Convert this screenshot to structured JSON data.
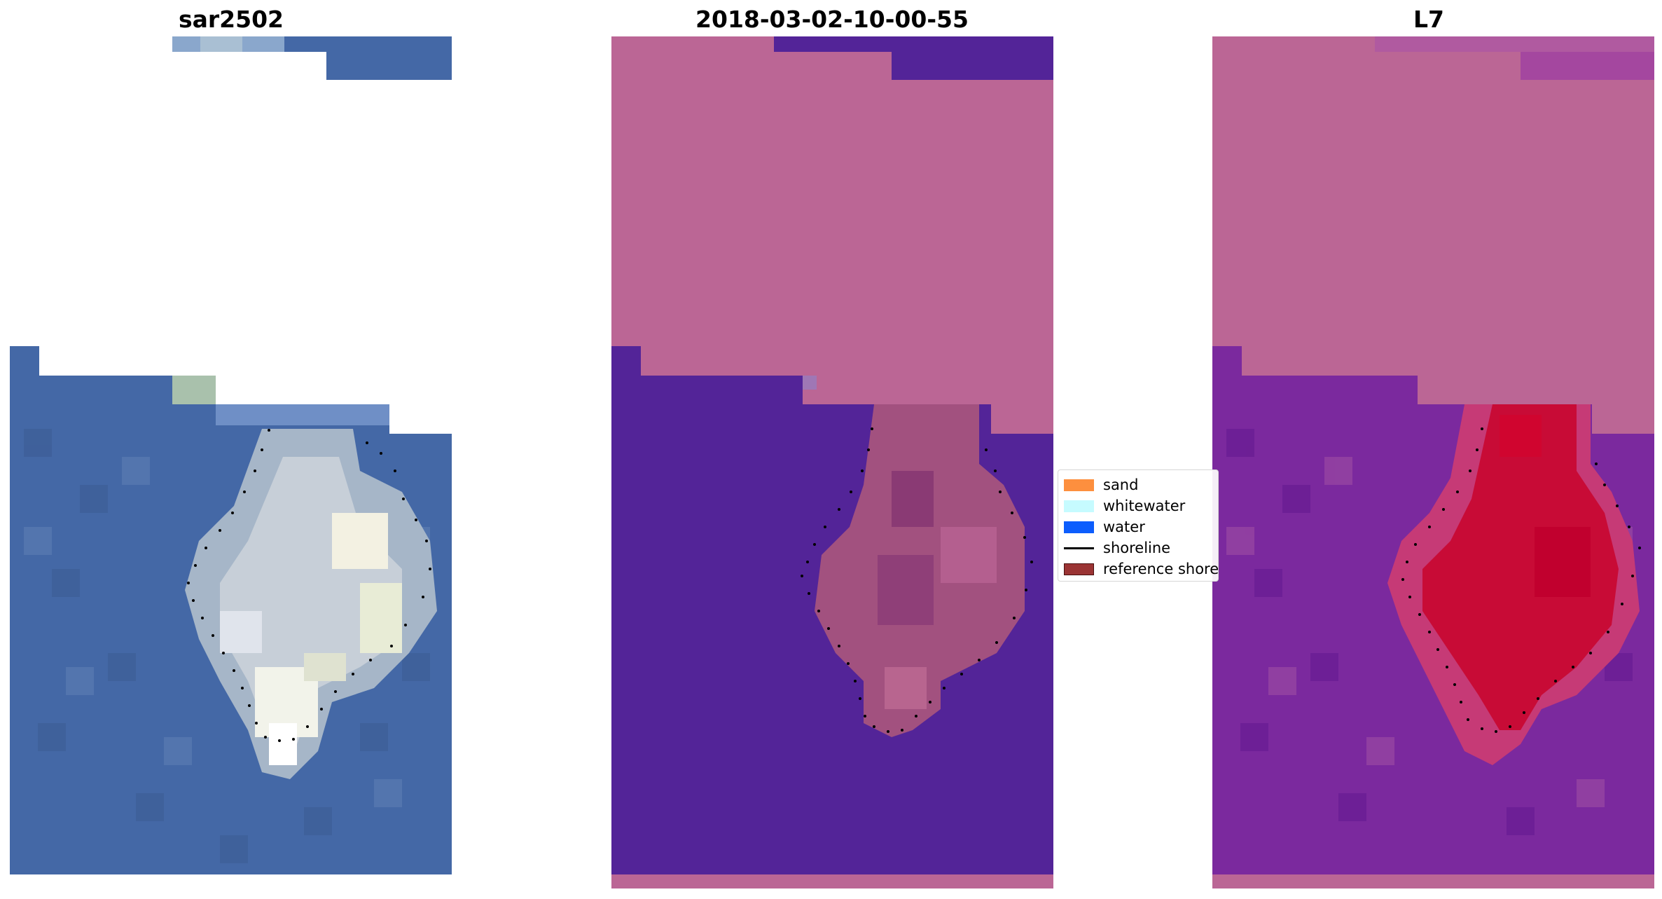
{
  "panels": [
    {
      "title": "sar2502"
    },
    {
      "title": "2018-03-02-10-00-55"
    },
    {
      "title": "L7"
    }
  ],
  "legend": {
    "items": [
      {
        "label": "sand",
        "color": "#fd8f3e",
        "kind": "patch"
      },
      {
        "label": "whitewater",
        "color": "#c6fbff",
        "kind": "patch"
      },
      {
        "label": "water",
        "color": "#0c5dfd",
        "kind": "patch"
      },
      {
        "label": "shoreline",
        "color": "#000000",
        "kind": "line"
      },
      {
        "label": "reference shoreline",
        "color": "#9b3434",
        "kind": "patch"
      }
    ]
  },
  "colors": {
    "ocean_blue": "#4468a6",
    "classification_pink": "#bb6695",
    "classification_purple": "#532498",
    "ndwi_purple": "#7b299e",
    "ndwi_red": "#c80b36",
    "white_sand": "#f3f1e2"
  }
}
